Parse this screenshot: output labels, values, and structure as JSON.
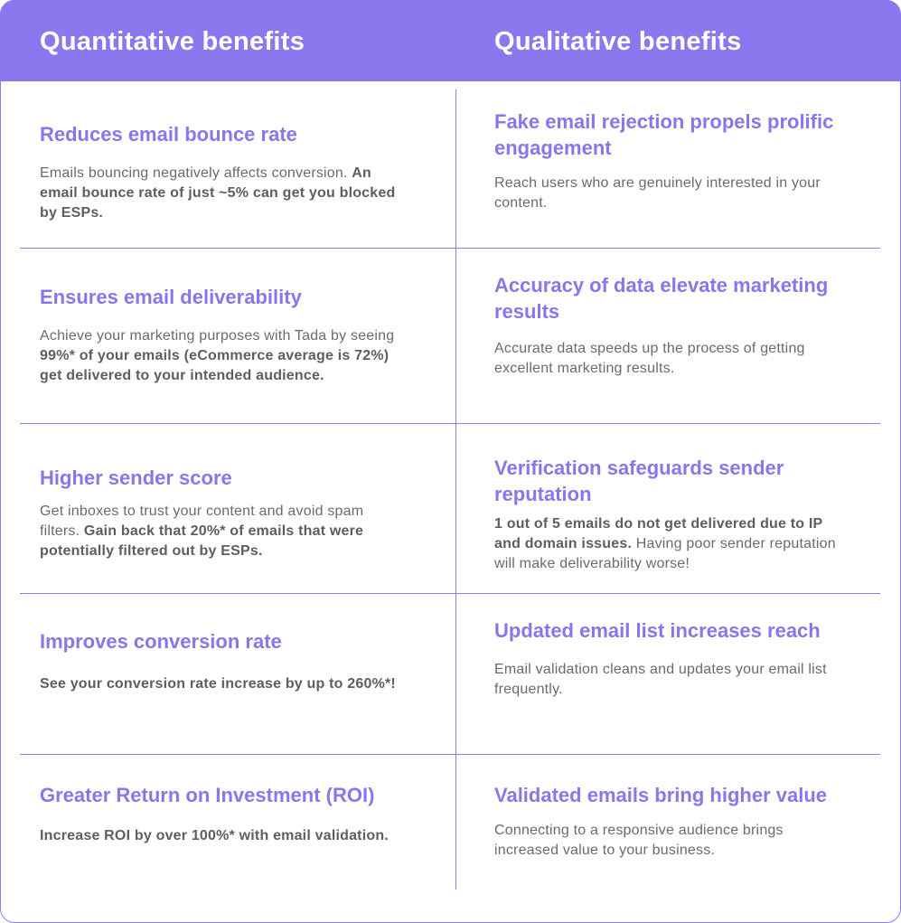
{
  "header": {
    "quantitative_title": "Quantitative benefits",
    "qualitative_title": "Qualitative benefits"
  },
  "rows": [
    {
      "left": {
        "title": "Reduces email bounce rate",
        "desc_plain": "Emails bouncing negatively affects conversion. ",
        "desc_bold": "An email bounce rate of just ~5% can get you blocked by ESPs.",
        "desc_tail": ""
      },
      "right": {
        "title": "Fake email rejection propels prolific engagement",
        "desc_plain": "Reach users who are genuinely interested in your content.",
        "desc_bold": "",
        "desc_tail": ""
      }
    },
    {
      "left": {
        "title": "Ensures email deliverability",
        "desc_plain": "Achieve your marketing purposes with Tada by seeing ",
        "desc_bold": "99%* of your emails (eCommerce average is 72%) get delivered to your intended audience.",
        "desc_tail": ""
      },
      "right": {
        "title": "Accuracy of data elevate marketing results",
        "desc_plain": "Accurate data speeds up the process of getting excellent marketing results.",
        "desc_bold": "",
        "desc_tail": ""
      }
    },
    {
      "left": {
        "title": "Higher sender score",
        "desc_plain": "Get inboxes to trust your content and avoid spam filters. ",
        "desc_bold": "Gain back that 20%* of emails that were potentially filtered out by ESPs.",
        "desc_tail": ""
      },
      "right": {
        "title": "Verification safeguards sender reputation",
        "desc_plain": "",
        "desc_bold": "1 out of 5 emails do not get delivered due to IP and domain issues.",
        "desc_tail": " Having poor sender reputation will make deliverability worse!"
      }
    },
    {
      "left": {
        "title": "Improves conversion rate",
        "desc_plain": "",
        "desc_bold": "See your conversion rate increase by up to 260%*!",
        "desc_tail": ""
      },
      "right": {
        "title": "Updated email list increases reach",
        "desc_plain": "Email validation cleans and updates your email list frequently.",
        "desc_bold": "",
        "desc_tail": ""
      }
    },
    {
      "left": {
        "title": "Greater Return on Investment (ROI)",
        "desc_plain": "",
        "desc_bold": "Increase ROI  by over 100%* with email validation.",
        "desc_tail": ""
      },
      "right": {
        "title": "Validated emails bring higher value",
        "desc_plain": "Connecting to a responsive audience brings increased value to your business.",
        "desc_bold": "",
        "desc_tail": ""
      }
    }
  ]
}
